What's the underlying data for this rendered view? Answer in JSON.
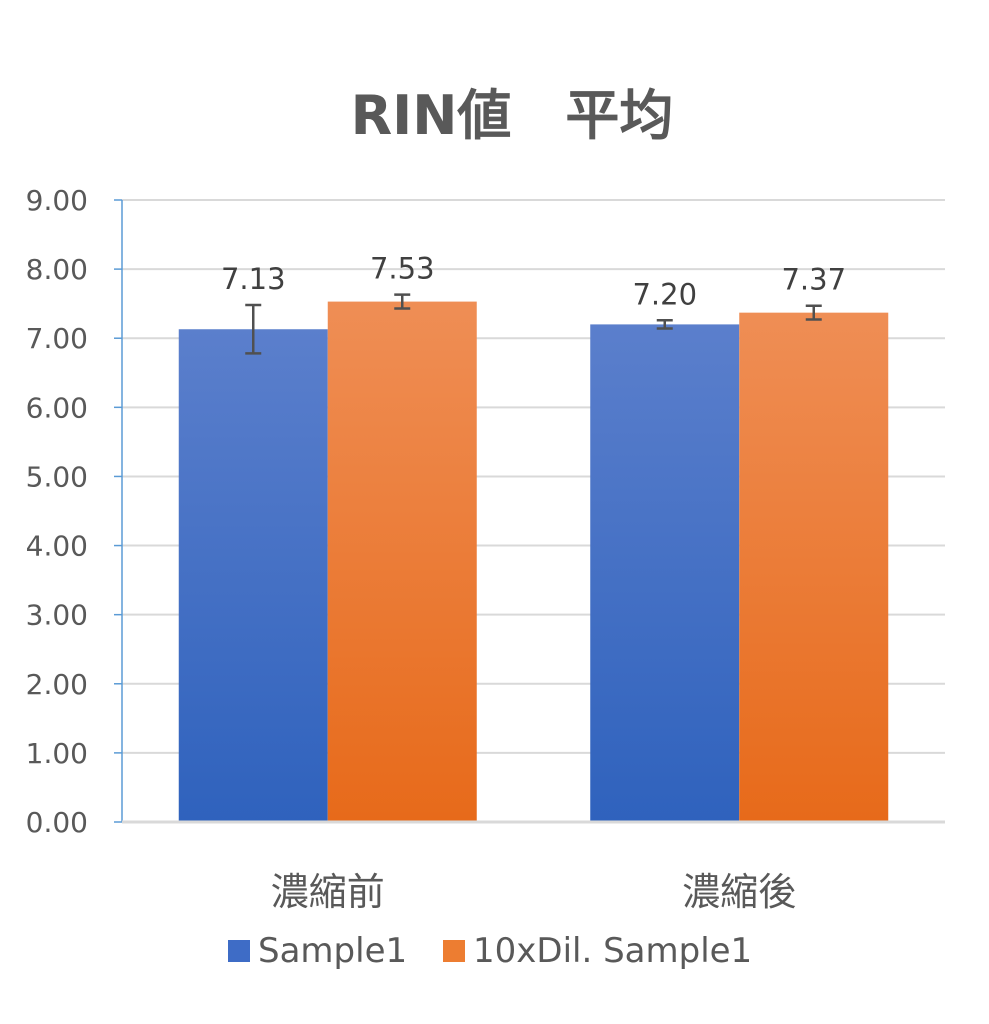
{
  "chart_data": {
    "type": "bar",
    "title": "RIN値　平均",
    "xlabel": "",
    "ylabel": "",
    "categories": [
      "濃縮前",
      "濃縮後"
    ],
    "ylim": [
      0,
      9
    ],
    "ytick_step": 1,
    "ytick_format_decimals": 2,
    "grid": true,
    "legend_position": "bottom",
    "series": [
      {
        "name": "Sample1",
        "values": [
          7.13,
          7.2
        ],
        "errors": [
          0.35,
          0.06
        ],
        "data_labels": [
          "7.13",
          "7.20"
        ],
        "color_top": "#5b7fcc",
        "color_bottom": "#2f62bd",
        "legend_color": "#3e6cc6"
      },
      {
        "name": "10xDil. Sample1",
        "values": [
          7.53,
          7.37
        ],
        "errors": [
          0.1,
          0.1
        ],
        "data_labels": [
          "7.53",
          "7.37"
        ],
        "color_top": "#ef8e55",
        "color_bottom": "#e76a1a",
        "legend_color": "#ed7d31"
      }
    ]
  }
}
